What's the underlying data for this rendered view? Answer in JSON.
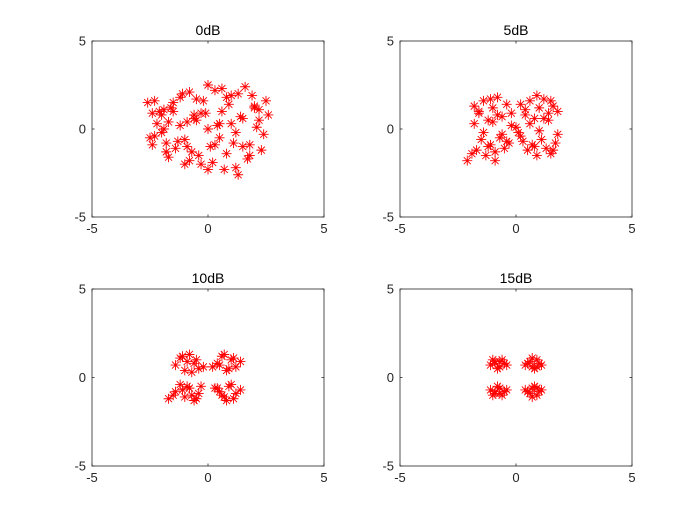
{
  "chart_data": [
    {
      "type": "scatter",
      "title": "0dB",
      "xlim": [
        -5,
        5
      ],
      "ylim": [
        -5,
        5
      ],
      "xticks": [
        -5,
        0,
        5
      ],
      "yticks": [
        -5,
        0,
        5
      ],
      "marker": "asterisk",
      "color": "#ff0000",
      "series": [
        {
          "x": [
            -2.6,
            -2.4,
            -2.2,
            -2.0,
            -1.8,
            -1.6,
            -2.5,
            -2.3,
            -1.9,
            -1.7,
            -1.4,
            -1.2,
            -1.0,
            -0.8,
            -0.6,
            -0.4,
            -0.2,
            0.0,
            0.2,
            0.4,
            0.6,
            0.8,
            1.0,
            1.2,
            1.4,
            1.6,
            1.8,
            2.0,
            2.2,
            2.4,
            2.6,
            2.5,
            2.3,
            2.1,
            1.9,
            1.7,
            1.5,
            1.3,
            1.1,
            0.9,
            0.7,
            0.5,
            0.3,
            0.1,
            -0.1,
            -0.3,
            -0.5,
            -0.7,
            -0.9,
            -1.1,
            -1.3,
            -1.5,
            -1.7,
            -1.9,
            -2.1,
            -2.3,
            -1.0,
            -0.5,
            0.5,
            1.0,
            -1.5,
            1.5,
            -0.8,
            0.8,
            0.0,
            -1.2,
            1.2,
            -0.3,
            0.3,
            -2.0,
            2.0,
            -1.8,
            1.8,
            0.0,
            1.3,
            -0.9,
            0.6,
            -0.6,
            -2.4,
            2.2
          ],
          "y": [
            1.5,
            0.9,
            0.3,
            -0.2,
            -0.8,
            1.2,
            -0.5,
            1.6,
            1.1,
            0.4,
            -1.1,
            1.8,
            -0.6,
            2.1,
            0.8,
            -1.5,
            1.6,
            2.5,
            -1.9,
            0.2,
            2.3,
            -1.4,
            1.9,
            -2.2,
            0.7,
            2.4,
            -0.9,
            1.3,
            0.5,
            -0.3,
            0.8,
            1.6,
            -1.2,
            0.1,
            1.9,
            -1.7,
            0.6,
            2.0,
            -0.8,
            1.4,
            -2.3,
            0.3,
            2.2,
            -1.0,
            0.9,
            -2.0,
            1.7,
            -1.3,
            0.4,
            2.0,
            -0.7,
            1.5,
            -1.6,
            0.0,
            1.0,
            -0.4,
            -2.0,
            0.5,
            -0.5,
            0.3,
            1.0,
            -1.0,
            -1.8,
            1.8,
            -2.3,
            0.2,
            -0.2,
            0.9,
            -0.9,
            0.8,
            1.2,
            -1.3,
            -1.5,
            0.0,
            -2.6,
            -1.0,
            1.0,
            0.6,
            -0.9,
            1.1
          ]
        }
      ]
    },
    {
      "type": "scatter",
      "title": "5dB",
      "xlim": [
        -5,
        5
      ],
      "ylim": [
        -5,
        5
      ],
      "xticks": [
        -5,
        0,
        5
      ],
      "yticks": [
        -5,
        0,
        5
      ],
      "marker": "asterisk",
      "color": "#ff0000",
      "series": [
        {
          "x": [
            -1.8,
            -1.6,
            -1.4,
            -1.2,
            -1.0,
            -0.8,
            -0.6,
            -0.4,
            -0.2,
            -1.7,
            -1.5,
            -1.3,
            -1.1,
            -0.9,
            -0.7,
            -0.5,
            -0.3,
            0.2,
            0.4,
            0.6,
            0.8,
            1.0,
            1.2,
            1.4,
            1.6,
            1.8,
            0.3,
            0.5,
            0.7,
            0.9,
            1.1,
            1.3,
            1.5,
            1.7,
            -1.8,
            -1.4,
            -1.0,
            -0.6,
            -0.2,
            0.2,
            0.6,
            1.0,
            1.4,
            1.8,
            -1.6,
            -1.2,
            -0.8,
            -0.4,
            0.4,
            0.8,
            1.2,
            1.6,
            -2.1,
            -1.9,
            -0.9,
            0.9,
            1.5,
            -1.1,
            0.0,
            0.1
          ],
          "y": [
            1.3,
            0.9,
            1.6,
            0.5,
            1.2,
            1.8,
            0.7,
            1.4,
            0.9,
            -1.2,
            -0.6,
            -1.5,
            -0.9,
            -1.3,
            -0.5,
            -1.1,
            -0.8,
            1.4,
            0.8,
            1.6,
            0.6,
            1.2,
            1.7,
            0.9,
            1.3,
            1.0,
            -0.7,
            -1.2,
            -0.9,
            -1.5,
            -0.6,
            -1.1,
            -1.4,
            -0.8,
            0.3,
            -0.2,
            0.4,
            -0.3,
            0.2,
            -0.4,
            0.3,
            -0.1,
            0.5,
            -0.3,
            1.0,
            -1.0,
            0.8,
            -0.7,
            1.1,
            -1.0,
            0.6,
            -1.2,
            -1.8,
            -1.4,
            -1.8,
            1.9,
            1.6,
            1.7,
            0.1,
            -0.2
          ]
        }
      ]
    },
    {
      "type": "scatter",
      "title": "10dB",
      "xlim": [
        -5,
        5
      ],
      "ylim": [
        -5,
        5
      ],
      "xticks": [
        -5,
        0,
        5
      ],
      "yticks": [
        -5,
        0,
        5
      ],
      "marker": "asterisk",
      "color": "#ff0000",
      "series": [
        {
          "x": [
            -1.4,
            -1.2,
            -1.0,
            -0.8,
            -0.6,
            -0.4,
            -0.9,
            -0.7,
            -1.1,
            -0.5,
            0.4,
            0.6,
            0.8,
            1.0,
            1.2,
            1.4,
            0.7,
            0.9,
            0.5,
            1.1,
            -1.4,
            -1.2,
            -1.0,
            -0.8,
            -0.6,
            -0.4,
            -0.9,
            -0.7,
            -1.1,
            -0.5,
            0.4,
            0.6,
            0.8,
            1.0,
            1.2,
            1.4,
            0.7,
            0.9,
            0.5,
            1.1,
            -1.7,
            -1.5,
            -0.2,
            0.2,
            -0.3,
            0.3
          ],
          "y": [
            0.7,
            1.1,
            0.4,
            1.3,
            0.8,
            0.5,
            0.9,
            0.3,
            1.2,
            1.0,
            0.8,
            1.2,
            0.4,
            1.0,
            0.6,
            0.9,
            1.3,
            0.5,
            0.7,
            1.1,
            -0.8,
            -0.4,
            -1.1,
            -0.6,
            -1.3,
            -0.9,
            -0.5,
            -1.0,
            -0.7,
            -1.2,
            -0.6,
            -1.0,
            -1.3,
            -0.4,
            -0.9,
            -0.7,
            -1.1,
            -0.5,
            -0.8,
            -1.2,
            -1.2,
            -1.0,
            0.6,
            0.6,
            -0.5,
            -0.6
          ]
        }
      ]
    },
    {
      "type": "scatter",
      "title": "15dB",
      "xlim": [
        -5,
        5
      ],
      "ylim": [
        -5,
        5
      ],
      "xticks": [
        -5,
        0,
        5
      ],
      "yticks": [
        -5,
        0,
        5
      ],
      "marker": "asterisk",
      "color": "#ff0000",
      "series": [
        {
          "x": [
            -1.1,
            -0.9,
            -0.7,
            -0.5,
            -1.0,
            -0.8,
            -0.6,
            -0.4,
            -0.9,
            -0.7,
            0.5,
            0.7,
            0.9,
            1.1,
            0.6,
            0.8,
            1.0,
            0.4,
            0.7,
            0.9,
            -1.1,
            -0.9,
            -0.7,
            -0.5,
            -1.0,
            -0.8,
            -0.6,
            -0.4,
            -0.9,
            -0.7,
            0.5,
            0.7,
            0.9,
            1.1,
            0.6,
            0.8,
            1.0,
            0.4,
            0.7,
            0.9
          ],
          "y": [
            0.7,
            0.9,
            0.6,
            0.8,
            1.0,
            0.5,
            1.0,
            0.7,
            0.8,
            0.9,
            0.8,
            0.6,
            1.0,
            0.7,
            0.9,
            0.5,
            0.8,
            0.7,
            1.1,
            0.6,
            -0.7,
            -0.9,
            -0.6,
            -0.8,
            -1.0,
            -0.5,
            -1.0,
            -0.7,
            -0.8,
            -0.9,
            -0.8,
            -0.6,
            -1.0,
            -0.7,
            -0.9,
            -0.5,
            -0.8,
            -0.7,
            -1.1,
            -0.6
          ]
        }
      ]
    }
  ]
}
